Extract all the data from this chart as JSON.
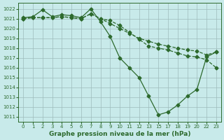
{
  "background_color": "#c8eaea",
  "grid_color": "#9dbcbc",
  "line_color": "#2d6a2d",
  "title": "Graphe pression niveau de la mer (hPa)",
  "ylim_min": 1010.5,
  "ylim_max": 1022.6,
  "ytick_min": 1011,
  "ytick_max": 1022,
  "xtick_labels": [
    "0",
    "1",
    "2",
    "3",
    "4",
    "5",
    "6",
    "7",
    "8",
    "9",
    "10",
    "11",
    "12",
    "13",
    "15",
    "17",
    "18",
    "19",
    "20",
    "22",
    "23"
  ],
  "xtick_pos": [
    0,
    1,
    2,
    3,
    4,
    5,
    6,
    7,
    8,
    9,
    10,
    11,
    12,
    13,
    14,
    15,
    16,
    17,
    18,
    19,
    20
  ],
  "xlim_min": -0.5,
  "xlim_max": 20.5,
  "series1_x": [
    0,
    1,
    2,
    3,
    4,
    5,
    6,
    7,
    8,
    9,
    10,
    11,
    12,
    13,
    14,
    15,
    16,
    17,
    18,
    19,
    20
  ],
  "series1_y": [
    1021.1,
    1021.2,
    1021.9,
    1021.2,
    1021.4,
    1021.3,
    1021.1,
    1022.0,
    1020.7,
    1019.2,
    1017.0,
    1016.0,
    1015.0,
    1013.1,
    1011.2,
    1011.5,
    1012.2,
    1013.1,
    1013.8,
    1017.1,
    1017.6
  ],
  "series2_x": [
    0,
    1,
    2,
    3,
    4,
    5,
    6,
    7,
    8,
    9,
    10,
    11,
    12,
    13,
    14,
    15,
    16,
    17,
    18,
    19,
    20
  ],
  "series2_y": [
    1021.0,
    1021.1,
    1021.1,
    1021.1,
    1021.2,
    1021.1,
    1021.0,
    1021.5,
    1021.0,
    1020.5,
    1020.0,
    1019.5,
    1019.0,
    1018.7,
    1018.4,
    1018.2,
    1018.0,
    1017.8,
    1017.7,
    1017.3,
    1017.6
  ],
  "series3_x": [
    0,
    1,
    2,
    3,
    4,
    5,
    6,
    7,
    8,
    9,
    10,
    11,
    12,
    13,
    14,
    15,
    16,
    17,
    18,
    19,
    20
  ],
  "series3_y": [
    1021.0,
    1021.1,
    1021.1,
    1021.1,
    1021.2,
    1021.1,
    1021.0,
    1021.5,
    1021.0,
    1020.8,
    1020.3,
    1019.6,
    1018.9,
    1018.2,
    1018.0,
    1017.8,
    1017.5,
    1017.2,
    1017.1,
    1016.8,
    1016.0
  ],
  "ylabel_fontsize": 5.5,
  "xlabel_fontsize": 6.5,
  "title_fontweight": "bold"
}
